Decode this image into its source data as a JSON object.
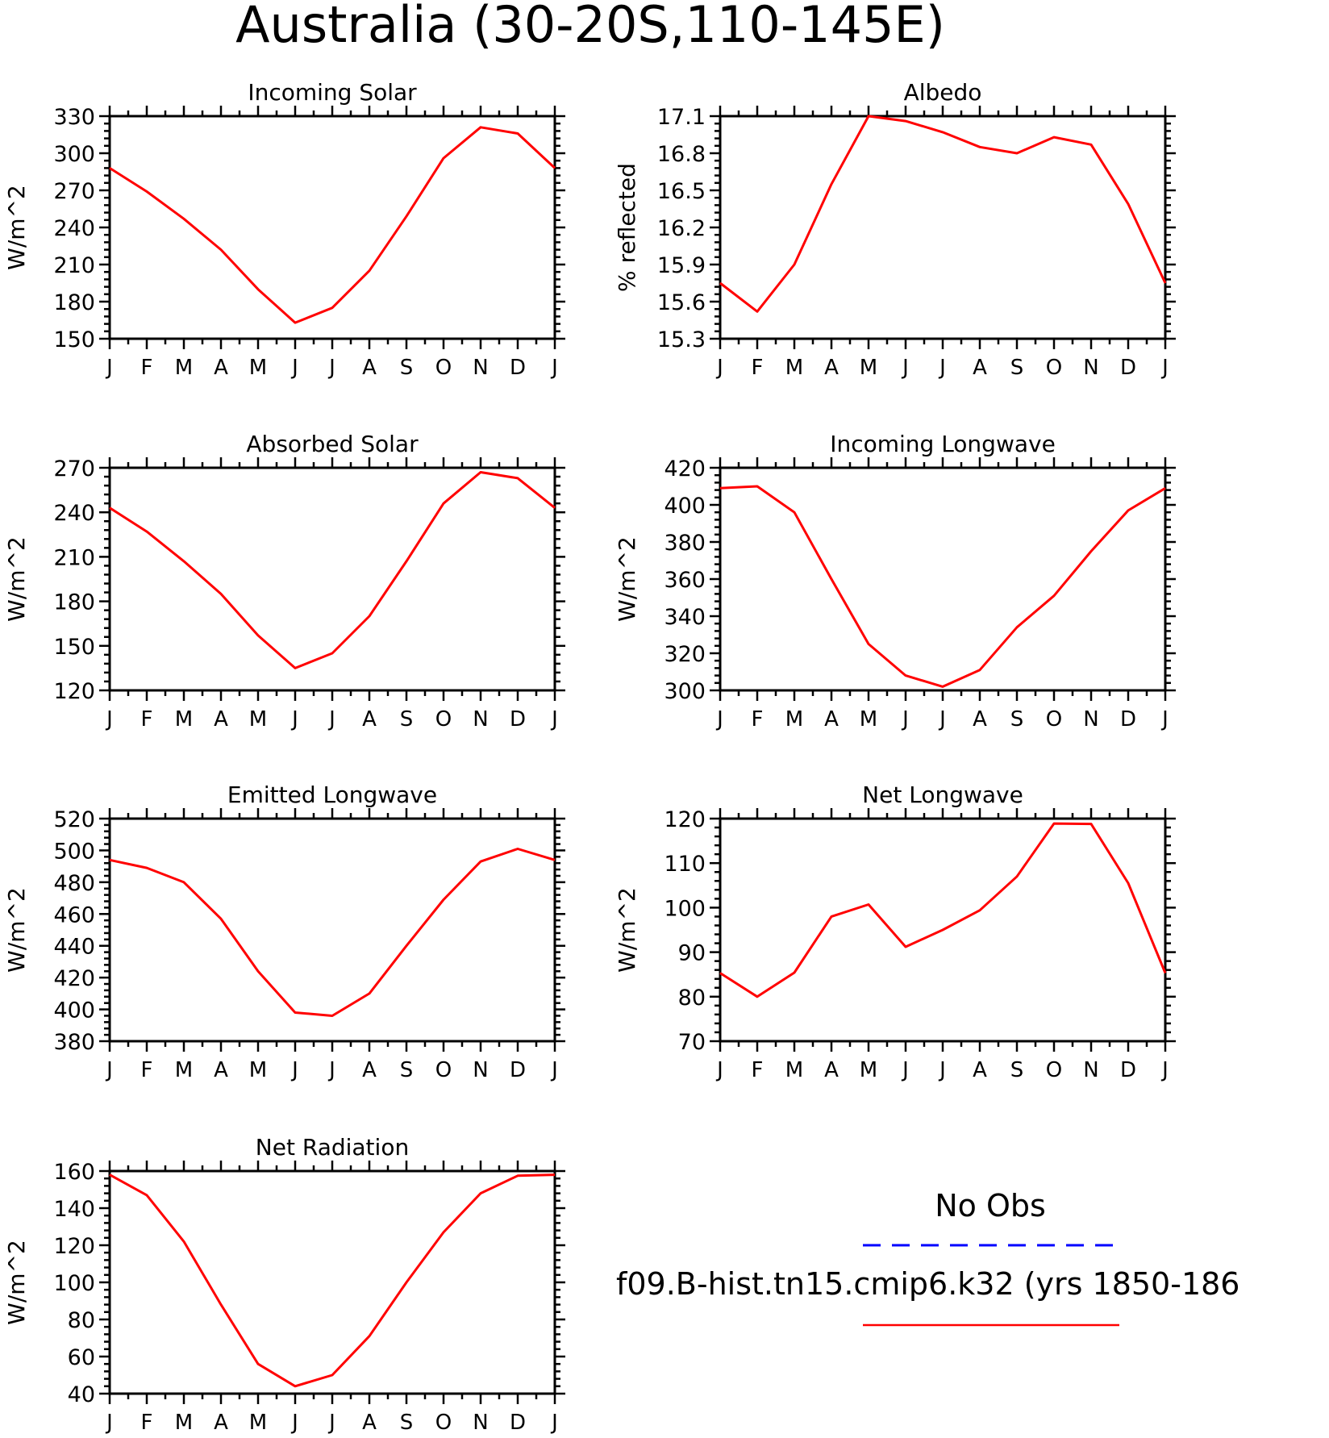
{
  "figure_title": "Australia (30-20S,110-145E)",
  "colors": {
    "model": "#ff0000",
    "obs": "#0000ff",
    "axes": "#000000"
  },
  "legend": {
    "obs_label": "No Obs",
    "model_label": "f09.B-hist.tn15.cmip6.k32 (yrs 1850-186"
  },
  "chart_data": [
    {
      "type": "line",
      "title": "Incoming Solar",
      "ylabel": "W/m^2",
      "categories": [
        "J",
        "F",
        "M",
        "A",
        "M",
        "J",
        "J",
        "A",
        "S",
        "O",
        "N",
        "D",
        "J"
      ],
      "ylim": [
        150,
        330
      ],
      "yticks": [
        150,
        180,
        210,
        240,
        270,
        300,
        330
      ],
      "series": [
        {
          "values": [
            288,
            269,
            247,
            222,
            190,
            163,
            175,
            205,
            249,
            296,
            321,
            316,
            288
          ]
        }
      ]
    },
    {
      "type": "line",
      "title": "Albedo",
      "ylabel": "% reflected",
      "categories": [
        "J",
        "F",
        "M",
        "A",
        "M",
        "J",
        "J",
        "A",
        "S",
        "O",
        "N",
        "D",
        "J"
      ],
      "ylim": [
        15.3,
        17.1
      ],
      "yticks": [
        15.3,
        15.6,
        15.9,
        16.2,
        16.5,
        16.8,
        17.1
      ],
      "series": [
        {
          "values": [
            15.75,
            15.52,
            15.9,
            16.55,
            17.1,
            17.06,
            16.97,
            16.85,
            16.8,
            16.93,
            16.87,
            16.39,
            15.75
          ]
        }
      ]
    },
    {
      "type": "line",
      "title": "Absorbed Solar",
      "ylabel": "W/m^2",
      "categories": [
        "J",
        "F",
        "M",
        "A",
        "M",
        "J",
        "J",
        "A",
        "S",
        "O",
        "N",
        "D",
        "J"
      ],
      "ylim": [
        120,
        270
      ],
      "yticks": [
        120,
        150,
        180,
        210,
        240,
        270
      ],
      "series": [
        {
          "values": [
            243,
            227,
            207,
            185,
            157,
            135,
            145,
            170,
            207,
            246,
            267,
            263,
            243
          ]
        }
      ]
    },
    {
      "type": "line",
      "title": "Incoming Longwave",
      "ylabel": "W/m^2",
      "categories": [
        "J",
        "F",
        "M",
        "A",
        "M",
        "J",
        "J",
        "A",
        "S",
        "O",
        "N",
        "D",
        "J"
      ],
      "ylim": [
        300,
        420
      ],
      "yticks": [
        300,
        320,
        340,
        360,
        380,
        400,
        420
      ],
      "series": [
        {
          "values": [
            409,
            410,
            396,
            360,
            325,
            308,
            302,
            311,
            334,
            351,
            375,
            397,
            409
          ]
        }
      ]
    },
    {
      "type": "line",
      "title": "Emitted Longwave",
      "ylabel": "W/m^2",
      "categories": [
        "J",
        "F",
        "M",
        "A",
        "M",
        "J",
        "J",
        "A",
        "S",
        "O",
        "N",
        "D",
        "J"
      ],
      "ylim": [
        380,
        520
      ],
      "yticks": [
        380,
        400,
        420,
        440,
        460,
        480,
        500,
        520
      ],
      "series": [
        {
          "values": [
            494,
            489,
            480,
            457,
            424,
            398,
            396,
            410,
            440,
            469,
            493,
            501,
            494
          ]
        }
      ]
    },
    {
      "type": "line",
      "title": "Net Longwave",
      "ylabel": "W/m^2",
      "categories": [
        "J",
        "F",
        "M",
        "A",
        "M",
        "J",
        "J",
        "A",
        "S",
        "O",
        "N",
        "D",
        "J"
      ],
      "ylim": [
        70,
        120
      ],
      "yticks": [
        70,
        80,
        90,
        100,
        110,
        120
      ],
      "series": [
        {
          "values": [
            85.3,
            80,
            85.4,
            98,
            100.7,
            91.2,
            95,
            99.4,
            107,
            118.9,
            118.8,
            105.5,
            85.3
          ]
        }
      ]
    },
    {
      "type": "line",
      "title": "Net Radiation",
      "ylabel": "W/m^2",
      "categories": [
        "J",
        "F",
        "M",
        "A",
        "M",
        "J",
        "J",
        "A",
        "S",
        "O",
        "N",
        "D",
        "J"
      ],
      "ylim": [
        40,
        160
      ],
      "yticks": [
        40,
        60,
        80,
        100,
        120,
        140,
        160
      ],
      "series": [
        {
          "values": [
            158,
            147,
            122,
            88,
            56,
            44,
            50,
            71,
            100,
            127,
            148,
            157.5,
            158
          ]
        }
      ]
    }
  ]
}
